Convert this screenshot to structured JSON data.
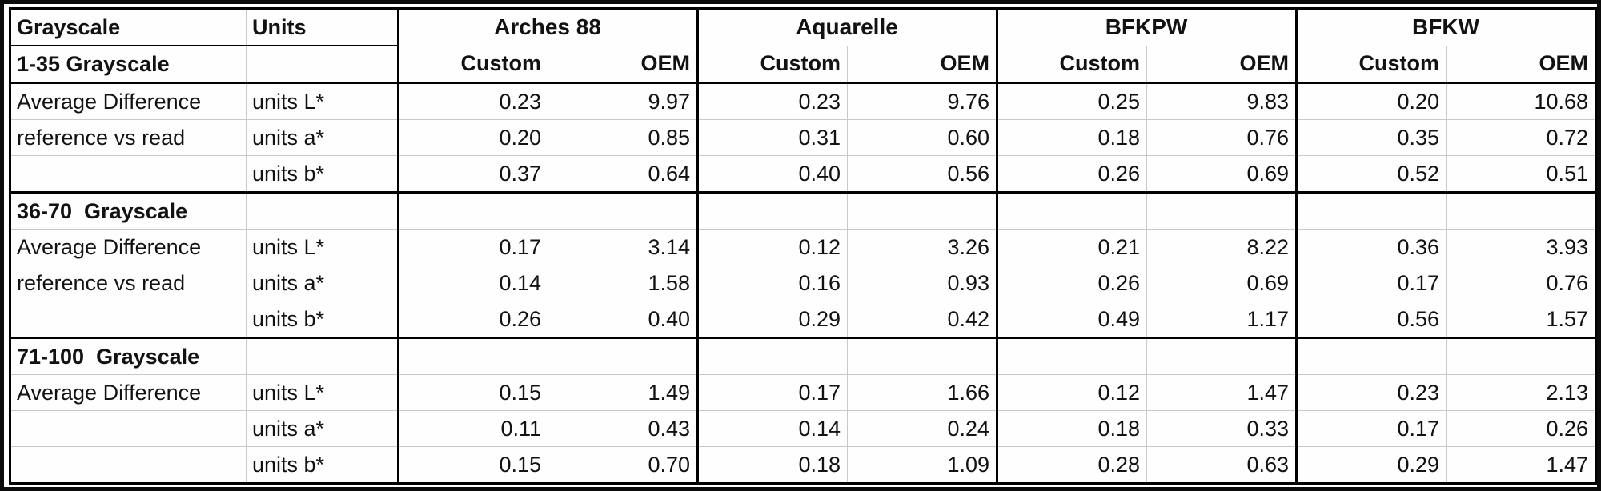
{
  "header": {
    "col1": "Grayscale",
    "col2": "Units",
    "groups": [
      {
        "name": "Arches 88"
      },
      {
        "name": "Aquarelle"
      },
      {
        "name": "BFKPW"
      },
      {
        "name": "BFKW"
      }
    ],
    "sub": {
      "custom": "Custom",
      "oem": "OEM"
    }
  },
  "colors": {
    "border_strong": "#000000",
    "border_light": "#c9c9c9",
    "text": "#121212",
    "background": "#fdfdfd"
  },
  "sections": [
    {
      "title": "1-35 Grayscale",
      "rows": [
        {
          "label": "Average Difference",
          "unit": "units L*",
          "values": [
            "0.23",
            "9.97",
            "0.23",
            "9.76",
            "0.25",
            "9.83",
            "0.20",
            "10.68"
          ]
        },
        {
          "label": "reference vs read",
          "unit": "units a*",
          "values": [
            "0.20",
            "0.85",
            "0.31",
            "0.60",
            "0.18",
            "0.76",
            "0.35",
            "0.72"
          ]
        },
        {
          "label": "",
          "unit": "units b*",
          "values": [
            "0.37",
            "0.64",
            "0.40",
            "0.56",
            "0.26",
            "0.69",
            "0.52",
            "0.51"
          ]
        }
      ]
    },
    {
      "title": "36-70  Grayscale",
      "rows": [
        {
          "label": "Average Difference",
          "unit": "units L*",
          "values": [
            "0.17",
            "3.14",
            "0.12",
            "3.26",
            "0.21",
            "8.22",
            "0.36",
            "3.93"
          ]
        },
        {
          "label": "reference vs read",
          "unit": "units a*",
          "values": [
            "0.14",
            "1.58",
            "0.16",
            "0.93",
            "0.26",
            "0.69",
            "0.17",
            "0.76"
          ]
        },
        {
          "label": "",
          "unit": "units b*",
          "values": [
            "0.26",
            "0.40",
            "0.29",
            "0.42",
            "0.49",
            "1.17",
            "0.56",
            "1.57"
          ]
        }
      ]
    },
    {
      "title": "71-100  Grayscale",
      "rows": [
        {
          "label": "Average Difference",
          "unit": "units L*",
          "values": [
            "0.15",
            "1.49",
            "0.17",
            "1.66",
            "0.12",
            "1.47",
            "0.23",
            "2.13"
          ]
        },
        {
          "label": "",
          "unit": "units a*",
          "values": [
            "0.11",
            "0.43",
            "0.14",
            "0.24",
            "0.18",
            "0.33",
            "0.17",
            "0.26"
          ]
        },
        {
          "label": "",
          "unit": "units b*",
          "values": [
            "0.15",
            "0.70",
            "0.18",
            "1.09",
            "0.28",
            "0.63",
            "0.29",
            "1.47"
          ]
        }
      ]
    }
  ]
}
